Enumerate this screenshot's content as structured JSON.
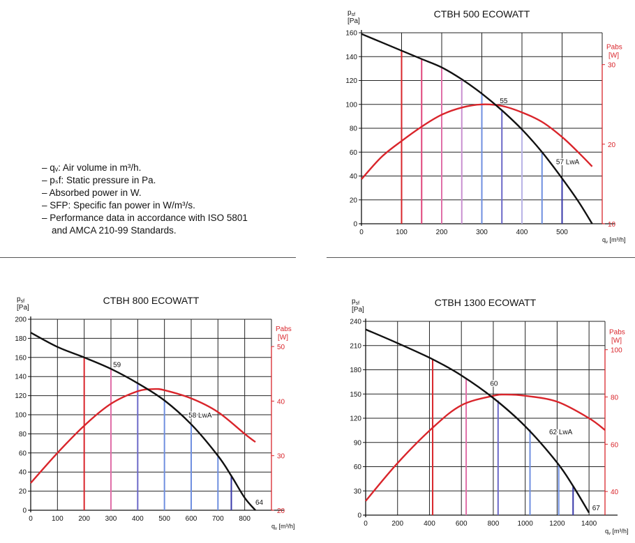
{
  "notes": [
    "– qᵥ: Air volume in m³/h.",
    "– pₛf: Static pressure in Pa.",
    "– Absorbed power in W.",
    "– SFP: Specific fan power in W/m³/s.",
    "– Performance data in accordance with ISO 5801\n  and AMCA 210-99 Standards."
  ],
  "colors": {
    "fan_curve": "#111111",
    "power_curve": "#d9252b",
    "pabs_axis": "#d9252b",
    "grid": "#222222",
    "sfp_lines": [
      "#d9252b",
      "#e0457a",
      "#e06fa8",
      "#c98fd0",
      "#a78ad8",
      "#6b68c8",
      "#b8b3e6",
      "#6f8fe0",
      "#3a3aaa"
    ]
  },
  "chart_data": [
    {
      "id": "ctbh500",
      "type": "line",
      "title": "CTBH 500 ECOWATT",
      "ylabel": "psf",
      "yunit": "[Pa]",
      "y2label": "Pabs",
      "y2unit": "[W]",
      "xlabel": "qv [m³/h]",
      "xlim": [
        0,
        600
      ],
      "xticks": [
        0,
        100,
        200,
        300,
        400,
        500
      ],
      "ylim": [
        0,
        160
      ],
      "yticks": [
        0,
        20,
        40,
        60,
        80,
        100,
        120,
        140,
        160
      ],
      "y2lim": [
        10,
        34
      ],
      "y2ticks": [
        10,
        20,
        30
      ],
      "grid": true,
      "pressure_curve": {
        "x": [
          0,
          50,
          100,
          150,
          200,
          250,
          300,
          350,
          400,
          450,
          500,
          540,
          575
        ],
        "y": [
          159,
          152,
          145,
          138,
          131,
          121,
          109,
          95,
          79,
          60,
          38,
          19,
          0
        ]
      },
      "power_curve": {
        "x": [
          0,
          50,
          100,
          150,
          200,
          250,
          300,
          350,
          400,
          450,
          500,
          540,
          575
        ],
        "y": [
          15.6,
          18.4,
          20.4,
          22.2,
          23.7,
          24.6,
          25.0,
          24.8,
          24.0,
          22.8,
          20.9,
          19.0,
          17.2
        ]
      },
      "verticals": [
        {
          "x": 100,
          "y": 145,
          "color": "#d9252b"
        },
        {
          "x": 150,
          "y": 138,
          "color": "#e0457a"
        },
        {
          "x": 200,
          "y": 131,
          "color": "#e06fa8"
        },
        {
          "x": 250,
          "y": 121,
          "color": "#c98fd0"
        },
        {
          "x": 300,
          "y": 109,
          "color": "#6f8fe0"
        },
        {
          "x": 350,
          "y": 95,
          "color": "#6b68c8"
        },
        {
          "x": 400,
          "y": 79,
          "color": "#b8b3e6"
        },
        {
          "x": 450,
          "y": 60,
          "color": "#6f8fe0"
        },
        {
          "x": 500,
          "y": 38,
          "color": "#3a3aaa"
        }
      ],
      "annotations": [
        {
          "text": "55",
          "x": 345,
          "y": 101
        },
        {
          "text": "57 LwA",
          "x": 485,
          "y": 50
        }
      ]
    },
    {
      "id": "ctbh800",
      "type": "line",
      "title": "CTBH 800 ECOWATT",
      "ylabel": "psf",
      "yunit": "[Pa]",
      "y2label": "Pabs",
      "y2unit": "[W]",
      "xlabel": "qv [m³/h]",
      "xlim": [
        0,
        900
      ],
      "xticks": [
        0,
        100,
        200,
        300,
        400,
        500,
        600,
        700,
        800
      ],
      "ylim": [
        0,
        200
      ],
      "yticks": [
        0,
        20,
        40,
        60,
        80,
        100,
        120,
        140,
        160,
        180,
        200
      ],
      "y2lim": [
        20,
        55
      ],
      "y2ticks": [
        20,
        30,
        40,
        50
      ],
      "grid": true,
      "pressure_curve": {
        "x": [
          0,
          100,
          200,
          300,
          400,
          500,
          600,
          700,
          750,
          800,
          840
        ],
        "y": [
          186,
          171,
          160,
          148,
          133,
          115,
          90,
          57,
          36,
          13,
          0
        ]
      },
      "power_curve": {
        "x": [
          0,
          100,
          200,
          300,
          400,
          460,
          500,
          600,
          700,
          800,
          840
        ],
        "y": [
          25,
          30.5,
          35.5,
          39.5,
          41.8,
          42.2,
          42.0,
          40.5,
          38.0,
          34.0,
          32.5
        ]
      },
      "verticals": [
        {
          "x": 200,
          "y": 160,
          "color": "#d9252b"
        },
        {
          "x": 300,
          "y": 148,
          "color": "#e06fa8"
        },
        {
          "x": 400,
          "y": 133,
          "color": "#6b68c8"
        },
        {
          "x": 500,
          "y": 115,
          "color": "#6f8fe0"
        },
        {
          "x": 600,
          "y": 90,
          "color": "#6f8fe0"
        },
        {
          "x": 700,
          "y": 57,
          "color": "#6f8fe0"
        },
        {
          "x": 750,
          "y": 36,
          "color": "#3a3aaa"
        }
      ],
      "annotations": [
        {
          "text": "59",
          "x": 308,
          "y": 150
        },
        {
          "text": "58 LwA",
          "x": 590,
          "y": 97
        },
        {
          "text": "64",
          "x": 840,
          "y": 6
        }
      ]
    },
    {
      "id": "ctbh1300",
      "type": "line",
      "title": "CTBH 1300 ECOWATT",
      "ylabel": "psf",
      "yunit": "[Pa]",
      "y2label": "Pabs",
      "y2unit": "[W]",
      "xlabel": "qv [m³/h]",
      "xlim": [
        0,
        1500
      ],
      "xticks": [
        0,
        200,
        400,
        600,
        800,
        1000,
        1200,
        1400
      ],
      "ylim": [
        0,
        240
      ],
      "yticks": [
        0,
        30,
        60,
        90,
        120,
        150,
        180,
        210,
        240
      ],
      "y2lim": [
        30,
        112
      ],
      "y2ticks": [
        40,
        60,
        80,
        100
      ],
      "grid": true,
      "pressure_curve": {
        "x": [
          0,
          200,
          420,
          600,
          800,
          1000,
          1200,
          1300,
          1400
        ],
        "y": [
          230,
          213,
          193,
          173,
          145,
          110,
          65,
          36,
          3
        ]
      },
      "power_curve": {
        "x": [
          0,
          200,
          420,
          600,
          800,
          880,
          1000,
          1200,
          1400,
          1500
        ],
        "y": [
          36,
          52,
          67,
          76.5,
          80.5,
          81,
          80.5,
          78,
          71,
          66
        ]
      },
      "verticals": [
        {
          "x": 420,
          "y": 193,
          "color": "#d9252b"
        },
        {
          "x": 630,
          "y": 170,
          "color": "#e06fa8"
        },
        {
          "x": 830,
          "y": 142,
          "color": "#6b68c8"
        },
        {
          "x": 1030,
          "y": 106,
          "color": "#6f8fe0"
        },
        {
          "x": 1210,
          "y": 62,
          "color": "#6f8fe0"
        },
        {
          "x": 1300,
          "y": 36,
          "color": "#3a3aaa"
        }
      ],
      "annotations": [
        {
          "text": "60",
          "x": 780,
          "y": 160
        },
        {
          "text": "62 LwA",
          "x": 1150,
          "y": 100
        },
        {
          "text": "67",
          "x": 1420,
          "y": 6
        }
      ]
    }
  ]
}
